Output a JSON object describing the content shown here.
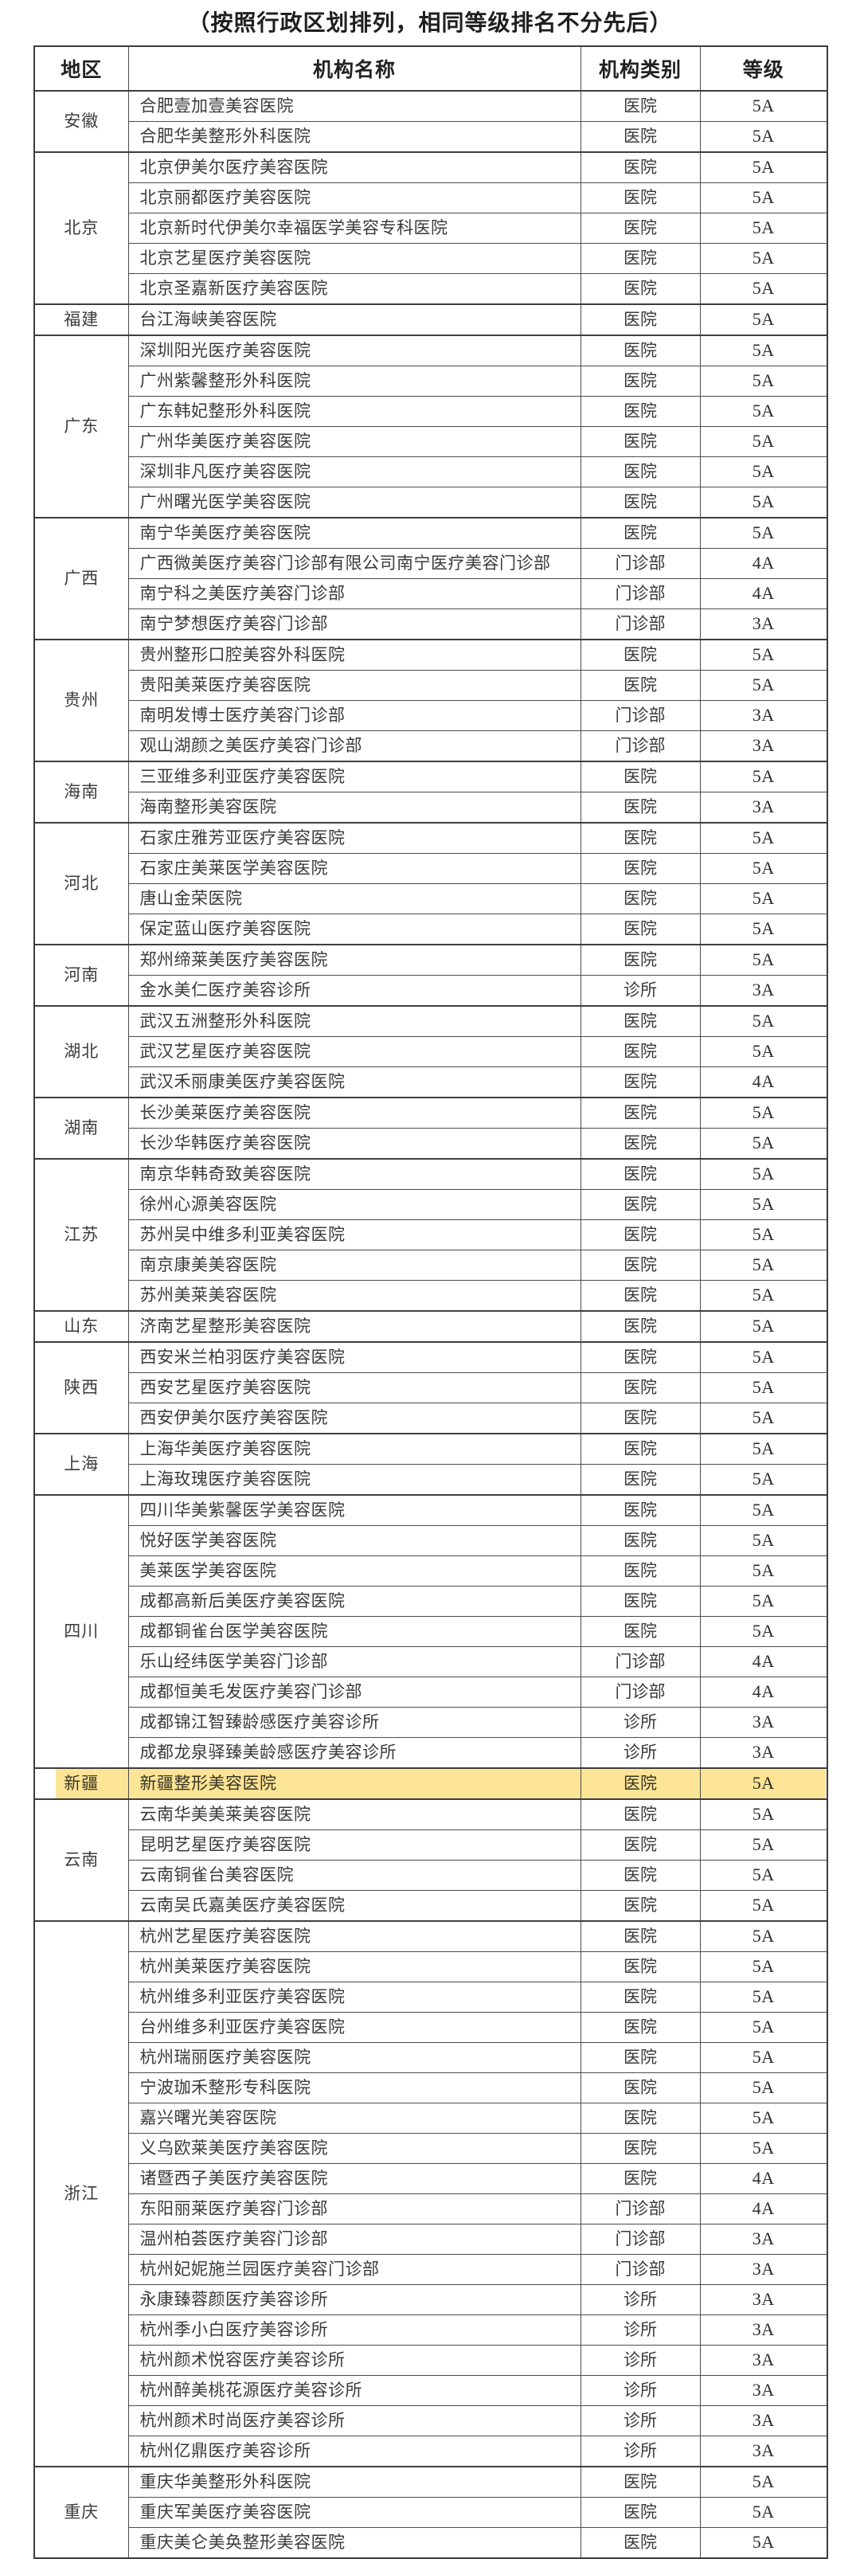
{
  "page": {
    "title": "（按照行政区划排列，相同等级排名不分先后）"
  },
  "table": {
    "headers": {
      "region": "地区",
      "name": "机构名称",
      "category": "机构类别",
      "grade": "等级"
    },
    "highlight": {
      "region": "新疆",
      "color": "#f8d454"
    },
    "sections": [
      {
        "region": "安徽",
        "rows": [
          {
            "name": "合肥壹加壹美容医院",
            "category": "医院",
            "grade": "5A"
          },
          {
            "name": "合肥华美整形外科医院",
            "category": "医院",
            "grade": "5A"
          }
        ]
      },
      {
        "region": "北京",
        "rows": [
          {
            "name": "北京伊美尔医疗美容医院",
            "category": "医院",
            "grade": "5A"
          },
          {
            "name": "北京丽都医疗美容医院",
            "category": "医院",
            "grade": "5A"
          },
          {
            "name": "北京新时代伊美尔幸福医学美容专科医院",
            "category": "医院",
            "grade": "5A"
          },
          {
            "name": "北京艺星医疗美容医院",
            "category": "医院",
            "grade": "5A"
          },
          {
            "name": "北京圣嘉新医疗美容医院",
            "category": "医院",
            "grade": "5A"
          }
        ]
      },
      {
        "region": "福建",
        "rows": [
          {
            "name": "台江海峡美容医院",
            "category": "医院",
            "grade": "5A"
          }
        ]
      },
      {
        "region": "广东",
        "rows": [
          {
            "name": "深圳阳光医疗美容医院",
            "category": "医院",
            "grade": "5A"
          },
          {
            "name": "广州紫馨整形外科医院",
            "category": "医院",
            "grade": "5A"
          },
          {
            "name": "广东韩妃整形外科医院",
            "category": "医院",
            "grade": "5A"
          },
          {
            "name": "广州华美医疗美容医院",
            "category": "医院",
            "grade": "5A"
          },
          {
            "name": "深圳非凡医疗美容医院",
            "category": "医院",
            "grade": "5A"
          },
          {
            "name": "广州曙光医学美容医院",
            "category": "医院",
            "grade": "5A"
          }
        ]
      },
      {
        "region": "广西",
        "rows": [
          {
            "name": "南宁华美医疗美容医院",
            "category": "医院",
            "grade": "5A"
          },
          {
            "name": "广西微美医疗美容门诊部有限公司南宁医疗美容门诊部",
            "category": "门诊部",
            "grade": "4A"
          },
          {
            "name": "南宁科之美医疗美容门诊部",
            "category": "门诊部",
            "grade": "4A"
          },
          {
            "name": "南宁梦想医疗美容门诊部",
            "category": "门诊部",
            "grade": "3A"
          }
        ]
      },
      {
        "region": "贵州",
        "rows": [
          {
            "name": "贵州整形口腔美容外科医院",
            "category": "医院",
            "grade": "5A"
          },
          {
            "name": "贵阳美莱医疗美容医院",
            "category": "医院",
            "grade": "5A"
          },
          {
            "name": "南明发博士医疗美容门诊部",
            "category": "门诊部",
            "grade": "3A"
          },
          {
            "name": "观山湖颜之美医疗美容门诊部",
            "category": "门诊部",
            "grade": "3A"
          }
        ]
      },
      {
        "region": "海南",
        "rows": [
          {
            "name": "三亚维多利亚医疗美容医院",
            "category": "医院",
            "grade": "5A"
          },
          {
            "name": "海南整形美容医院",
            "category": "医院",
            "grade": "3A"
          }
        ]
      },
      {
        "region": "河北",
        "rows": [
          {
            "name": "石家庄雅芳亚医疗美容医院",
            "category": "医院",
            "grade": "5A"
          },
          {
            "name": "石家庄美莱医学美容医院",
            "category": "医院",
            "grade": "5A"
          },
          {
            "name": "唐山金荣医院",
            "category": "医院",
            "grade": "5A"
          },
          {
            "name": "保定蓝山医疗美容医院",
            "category": "医院",
            "grade": "5A"
          }
        ]
      },
      {
        "region": "河南",
        "rows": [
          {
            "name": "郑州缔莱美医疗美容医院",
            "category": "医院",
            "grade": "5A"
          },
          {
            "name": "金水美仁医疗美容诊所",
            "category": "诊所",
            "grade": "3A"
          }
        ]
      },
      {
        "region": "湖北",
        "rows": [
          {
            "name": "武汉五洲整形外科医院",
            "category": "医院",
            "grade": "5A"
          },
          {
            "name": "武汉艺星医疗美容医院",
            "category": "医院",
            "grade": "5A"
          },
          {
            "name": "武汉禾丽康美医疗美容医院",
            "category": "医院",
            "grade": "4A"
          }
        ]
      },
      {
        "region": "湖南",
        "rows": [
          {
            "name": "长沙美莱医疗美容医院",
            "category": "医院",
            "grade": "5A"
          },
          {
            "name": "长沙华韩医疗美容医院",
            "category": "医院",
            "grade": "5A"
          }
        ]
      },
      {
        "region": "江苏",
        "rows": [
          {
            "name": "南京华韩奇致美容医院",
            "category": "医院",
            "grade": "5A"
          },
          {
            "name": "徐州心源美容医院",
            "category": "医院",
            "grade": "5A"
          },
          {
            "name": "苏州吴中维多利亚美容医院",
            "category": "医院",
            "grade": "5A"
          },
          {
            "name": "南京康美美容医院",
            "category": "医院",
            "grade": "5A"
          },
          {
            "name": "苏州美莱美容医院",
            "category": "医院",
            "grade": "5A"
          }
        ]
      },
      {
        "region": "山东",
        "rows": [
          {
            "name": "济南艺星整形美容医院",
            "category": "医院",
            "grade": "5A"
          }
        ]
      },
      {
        "region": "陕西",
        "rows": [
          {
            "name": "西安米兰柏羽医疗美容医院",
            "category": "医院",
            "grade": "5A"
          },
          {
            "name": "西安艺星医疗美容医院",
            "category": "医院",
            "grade": "5A"
          },
          {
            "name": "西安伊美尔医疗美容医院",
            "category": "医院",
            "grade": "5A"
          }
        ]
      },
      {
        "region": "上海",
        "rows": [
          {
            "name": "上海华美医疗美容医院",
            "category": "医院",
            "grade": "5A"
          },
          {
            "name": "上海玫瑰医疗美容医院",
            "category": "医院",
            "grade": "5A"
          }
        ]
      },
      {
        "region": "四川",
        "rows": [
          {
            "name": "四川华美紫馨医学美容医院",
            "category": "医院",
            "grade": "5A"
          },
          {
            "name": "悦好医学美容医院",
            "category": "医院",
            "grade": "5A"
          },
          {
            "name": "美莱医学美容医院",
            "category": "医院",
            "grade": "5A"
          },
          {
            "name": "成都高新后美医疗美容医院",
            "category": "医院",
            "grade": "5A"
          },
          {
            "name": "成都铜雀台医学美容医院",
            "category": "医院",
            "grade": "5A"
          },
          {
            "name": "乐山经纬医学美容门诊部",
            "category": "门诊部",
            "grade": "4A"
          },
          {
            "name": "成都恒美毛发医疗美容门诊部",
            "category": "门诊部",
            "grade": "4A"
          },
          {
            "name": "成都锦江智臻龄感医疗美容诊所",
            "category": "诊所",
            "grade": "3A"
          },
          {
            "name": "成都龙泉驿臻美龄感医疗美容诊所",
            "category": "诊所",
            "grade": "3A"
          }
        ]
      },
      {
        "region": "新疆",
        "highlight": true,
        "rows": [
          {
            "name": "新疆整形美容医院",
            "category": "医院",
            "grade": "5A"
          }
        ]
      },
      {
        "region": "云南",
        "rows": [
          {
            "name": "云南华美美莱美容医院",
            "category": "医院",
            "grade": "5A"
          },
          {
            "name": "昆明艺星医疗美容医院",
            "category": "医院",
            "grade": "5A"
          },
          {
            "name": "云南铜雀台美容医院",
            "category": "医院",
            "grade": "5A"
          },
          {
            "name": "云南吴氏嘉美医疗美容医院",
            "category": "医院",
            "grade": "5A"
          }
        ]
      },
      {
        "region": "浙江",
        "rows": [
          {
            "name": "杭州艺星医疗美容医院",
            "category": "医院",
            "grade": "5A"
          },
          {
            "name": "杭州美莱医疗美容医院",
            "category": "医院",
            "grade": "5A"
          },
          {
            "name": "杭州维多利亚医疗美容医院",
            "category": "医院",
            "grade": "5A"
          },
          {
            "name": "台州维多利亚医疗美容医院",
            "category": "医院",
            "grade": "5A"
          },
          {
            "name": "杭州瑞丽医疗美容医院",
            "category": "医院",
            "grade": "5A"
          },
          {
            "name": "宁波珈禾整形专科医院",
            "category": "医院",
            "grade": "5A"
          },
          {
            "name": "嘉兴曙光美容医院",
            "category": "医院",
            "grade": "5A"
          },
          {
            "name": "义乌欧莱美医疗美容医院",
            "category": "医院",
            "grade": "5A"
          },
          {
            "name": "诸暨西子美医疗美容医院",
            "category": "医院",
            "grade": "4A"
          },
          {
            "name": "东阳丽莱医疗美容门诊部",
            "category": "门诊部",
            "grade": "4A"
          },
          {
            "name": "温州柏荟医疗美容门诊部",
            "category": "门诊部",
            "grade": "3A"
          },
          {
            "name": "杭州妃妮施兰园医疗美容门诊部",
            "category": "门诊部",
            "grade": "3A"
          },
          {
            "name": "永康臻蓉颜医疗美容诊所",
            "category": "诊所",
            "grade": "3A"
          },
          {
            "name": "杭州季小白医疗美容诊所",
            "category": "诊所",
            "grade": "3A"
          },
          {
            "name": "杭州颜术悦容医疗美容诊所",
            "category": "诊所",
            "grade": "3A"
          },
          {
            "name": "杭州醉美桃花源医疗美容诊所",
            "category": "诊所",
            "grade": "3A"
          },
          {
            "name": "杭州颜术时尚医疗美容诊所",
            "category": "诊所",
            "grade": "3A"
          },
          {
            "name": "杭州亿鼎医疗美容诊所",
            "category": "诊所",
            "grade": "3A"
          }
        ]
      },
      {
        "region": "重庆",
        "rows": [
          {
            "name": "重庆华美整形外科医院",
            "category": "医院",
            "grade": "5A"
          },
          {
            "name": "重庆军美医疗美容医院",
            "category": "医院",
            "grade": "5A"
          },
          {
            "name": "重庆美仑美奂整形美容医院",
            "category": "医院",
            "grade": "5A"
          }
        ]
      }
    ]
  }
}
